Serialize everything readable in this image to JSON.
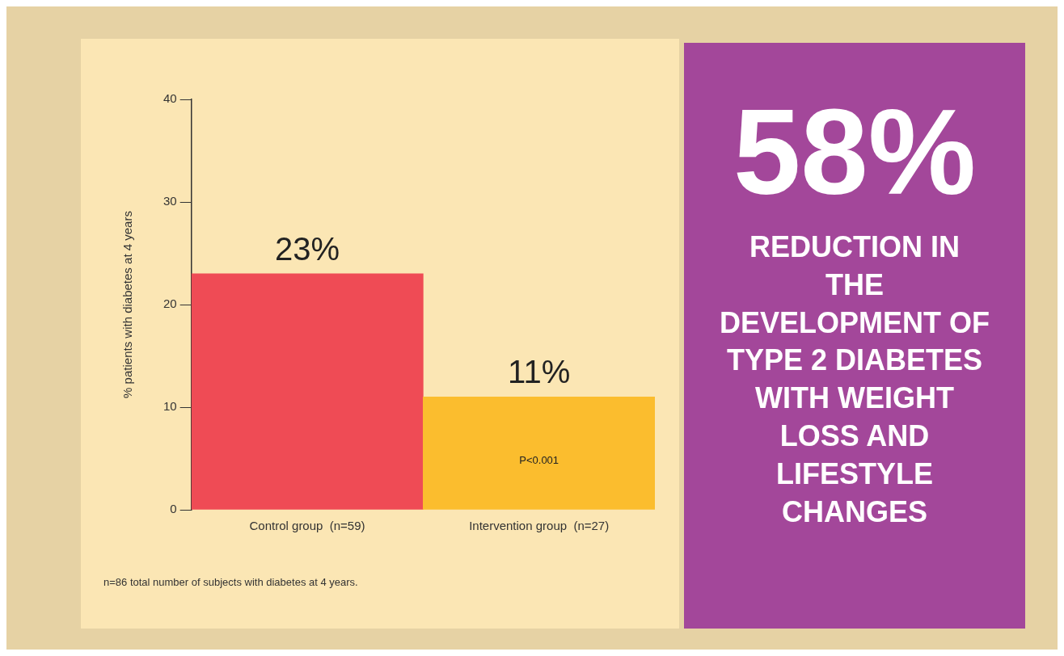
{
  "chart_data": [
    {
      "type": "bar",
      "ylabel": "% patients with diabetes at 4 years",
      "categories": [
        "Control group  (n=59)",
        "Intervention group  (n=27)"
      ],
      "colors": [
        "#ef4b55",
        "#fbbd2e"
      ],
      "values": [
        23,
        11
      ],
      "value_labels": [
        "23%",
        "11%"
      ],
      "ylim": [
        0,
        40
      ],
      "yticks": [
        0,
        10,
        20,
        30,
        40
      ],
      "grid": false,
      "legend": false,
      "annotations": [
        "P<0.001",
        "n=86 total number of subjects with diabetes at 4 years."
      ]
    },
    {
      "type": "other",
      "title": "58%",
      "subtitle": "REDUCTION IN THE DEVELOPMENT OF TYPE 2 DIABETES WITH WEIGHT LOSS AND LIFESTYLE CHANGES"
    }
  ]
}
